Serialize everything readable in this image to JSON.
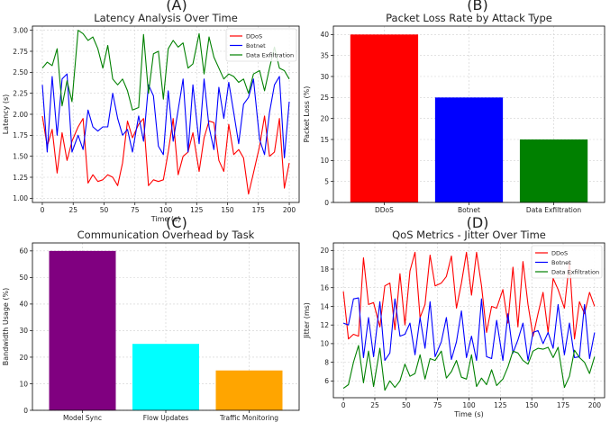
{
  "panel_letters": [
    "(A)",
    "(B)",
    "(C)",
    "(D)"
  ],
  "chart_data": [
    {
      "type": "line",
      "title": "Latency Analysis Over Time",
      "xlabel": "Time (s)",
      "ylabel": "Latency (s)",
      "xlim": [
        -8,
        208
      ],
      "ylim": [
        0.95,
        3.05
      ],
      "xticks": [
        0,
        25,
        50,
        75,
        100,
        125,
        150,
        175,
        200
      ],
      "yticks": [
        1.0,
        1.25,
        1.5,
        1.75,
        2.0,
        2.25,
        2.5,
        2.75,
        3.0
      ],
      "ytick_labels": [
        "1.00",
        "1.25",
        "1.50",
        "1.75",
        "2.00",
        "2.25",
        "2.50",
        "2.75",
        "3.00"
      ],
      "grid": true,
      "legend_position": "top-right",
      "x": [
        0,
        4,
        8,
        12,
        16,
        20,
        24,
        29,
        33,
        37,
        41,
        45,
        49,
        53,
        57,
        61,
        65,
        69,
        73,
        78,
        82,
        86,
        90,
        94,
        98,
        102,
        106,
        110,
        114,
        118,
        122,
        127,
        131,
        135,
        139,
        143,
        147,
        151,
        155,
        159,
        163,
        167,
        171,
        176,
        180,
        184,
        188,
        192,
        196,
        200
      ],
      "series": [
        {
          "name": "DDoS",
          "color": "#ff0000",
          "values": [
            1.98,
            1.62,
            1.82,
            1.3,
            1.78,
            1.45,
            1.68,
            1.85,
            1.95,
            1.18,
            1.28,
            1.2,
            1.22,
            1.28,
            1.25,
            1.15,
            1.42,
            1.92,
            1.72,
            1.88,
            1.95,
            1.15,
            1.22,
            1.2,
            1.22,
            1.55,
            1.95,
            1.28,
            1.5,
            1.55,
            1.78,
            1.32,
            1.72,
            1.92,
            1.9,
            1.45,
            1.32,
            1.88,
            1.52,
            1.58,
            1.48,
            1.05,
            1.3,
            1.62,
            1.98,
            1.5,
            1.55,
            1.95,
            1.12,
            1.42
          ]
        },
        {
          "name": "Botnet",
          "color": "#0000ff",
          "values": [
            2.35,
            1.55,
            2.45,
            1.75,
            2.42,
            2.48,
            1.55,
            1.75,
            1.58,
            2.05,
            1.85,
            1.8,
            1.85,
            1.85,
            2.25,
            1.95,
            1.75,
            1.82,
            1.55,
            1.98,
            1.68,
            2.35,
            2.22,
            1.62,
            1.52,
            2.28,
            1.68,
            2.05,
            2.42,
            1.55,
            2.35,
            1.65,
            2.42,
            1.85,
            1.58,
            2.32,
            1.95,
            2.38,
            2.02,
            1.65,
            2.12,
            2.2,
            2.42,
            1.7,
            1.52,
            2.02,
            2.35,
            2.45,
            1.48,
            2.15
          ]
        },
        {
          "name": "Data Exfiltration",
          "color": "#008000",
          "values": [
            2.55,
            2.62,
            2.58,
            2.78,
            2.1,
            2.4,
            2.15,
            3.0,
            2.96,
            2.88,
            2.92,
            2.78,
            2.55,
            2.82,
            2.42,
            2.35,
            2.42,
            2.28,
            2.05,
            2.08,
            2.95,
            2.25,
            2.72,
            2.75,
            2.18,
            2.78,
            2.88,
            2.8,
            2.85,
            2.55,
            2.6,
            2.96,
            2.48,
            2.92,
            2.68,
            2.55,
            2.42,
            2.48,
            2.45,
            2.38,
            2.42,
            2.25,
            2.48,
            2.52,
            2.28,
            2.55,
            2.8,
            2.55,
            2.52,
            2.42
          ]
        }
      ]
    },
    {
      "type": "bar",
      "title": "Packet Loss Rate by Attack Type",
      "xlabel": "",
      "ylabel": "Packet Loss (%)",
      "ylim": [
        0,
        42
      ],
      "yticks": [
        0,
        5,
        10,
        15,
        20,
        25,
        30,
        35,
        40
      ],
      "categories": [
        "DDoS",
        "Botnet",
        "Data Exfiltration"
      ],
      "values": [
        40,
        25,
        15
      ],
      "colors": [
        "#ff0000",
        "#0000ff",
        "#008000"
      ],
      "grid": true
    },
    {
      "type": "bar",
      "title": "Communication Overhead by Task",
      "xlabel": "",
      "ylabel": "Bandwidth Usage (%)",
      "ylim": [
        0,
        63
      ],
      "yticks": [
        0,
        10,
        20,
        30,
        40,
        50,
        60
      ],
      "categories": [
        "Model Sync",
        "Flow Updates",
        "Traffic Monitoring"
      ],
      "values": [
        60,
        25,
        15
      ],
      "colors": [
        "#800080",
        "#00ffff",
        "#ffa500"
      ],
      "grid": true
    },
    {
      "type": "line",
      "title": "QoS Metrics - Jitter Over Time",
      "xlabel": "Time (s)",
      "ylabel": "Jitter (ms)",
      "xlim": [
        -8,
        208
      ],
      "ylim": [
        4.2,
        20.8
      ],
      "xticks": [
        0,
        25,
        50,
        75,
        100,
        125,
        150,
        175,
        200
      ],
      "yticks": [
        6,
        8,
        10,
        12,
        14,
        16,
        18,
        20
      ],
      "grid": true,
      "legend_position": "top-right",
      "x": [
        0,
        4,
        8,
        12,
        16,
        20,
        24,
        29,
        33,
        37,
        41,
        45,
        49,
        53,
        57,
        61,
        65,
        69,
        73,
        78,
        82,
        86,
        90,
        94,
        98,
        102,
        106,
        110,
        114,
        118,
        122,
        127,
        131,
        135,
        139,
        143,
        147,
        151,
        155,
        159,
        163,
        167,
        171,
        176,
        180,
        184,
        188,
        192,
        196,
        200
      ],
      "series": [
        {
          "name": "DDoS",
          "color": "#ff0000",
          "values": [
            15.6,
            10.5,
            11.0,
            10.8,
            19.2,
            14.2,
            14.4,
            11.8,
            16.2,
            16.5,
            11.5,
            17.5,
            12.0,
            17.8,
            19.8,
            12.8,
            14.2,
            19.5,
            16.2,
            16.5,
            17.2,
            19.4,
            13.8,
            16.5,
            19.8,
            15.2,
            19.8,
            16.2,
            11.2,
            14.0,
            13.8,
            15.8,
            12.2,
            18.2,
            11.8,
            18.8,
            14.2,
            10.8,
            13.2,
            15.5,
            11.2,
            17.0,
            15.8,
            13.8,
            18.8,
            10.5,
            14.5,
            13.2,
            15.5,
            14.0
          ]
        },
        {
          "name": "Botnet",
          "color": "#0000ff",
          "values": [
            12.2,
            12.0,
            14.8,
            14.9,
            8.5,
            12.8,
            8.6,
            14.5,
            8.2,
            9.0,
            14.8,
            10.8,
            11.0,
            12.2,
            8.8,
            12.8,
            9.5,
            14.5,
            8.6,
            10.2,
            12.8,
            8.3,
            10.2,
            13.5,
            8.5,
            10.8,
            8.2,
            14.8,
            8.6,
            8.4,
            12.5,
            8.2,
            13.2,
            9.0,
            10.4,
            12.2,
            8.2,
            11.2,
            11.4,
            10.0,
            11.2,
            9.5,
            14.2,
            8.8,
            12.2,
            8.5,
            8.6,
            14.2,
            8.4,
            11.2
          ]
        },
        {
          "name": "Data Exfiltration",
          "color": "#008000",
          "values": [
            5.2,
            5.6,
            8.0,
            9.8,
            5.8,
            9.2,
            5.4,
            9.5,
            5.0,
            6.0,
            5.3,
            6.0,
            7.8,
            6.5,
            6.8,
            8.8,
            6.2,
            8.4,
            8.2,
            9.2,
            6.3,
            7.0,
            8.2,
            6.4,
            6.2,
            8.8,
            5.4,
            6.3,
            5.6,
            7.2,
            5.5,
            6.2,
            7.5,
            9.2,
            9.0,
            8.2,
            7.8,
            9.2,
            9.5,
            9.4,
            9.6,
            8.5,
            9.6,
            5.3,
            6.5,
            9.3,
            8.5,
            8.0,
            6.8,
            8.6
          ]
        }
      ]
    }
  ]
}
